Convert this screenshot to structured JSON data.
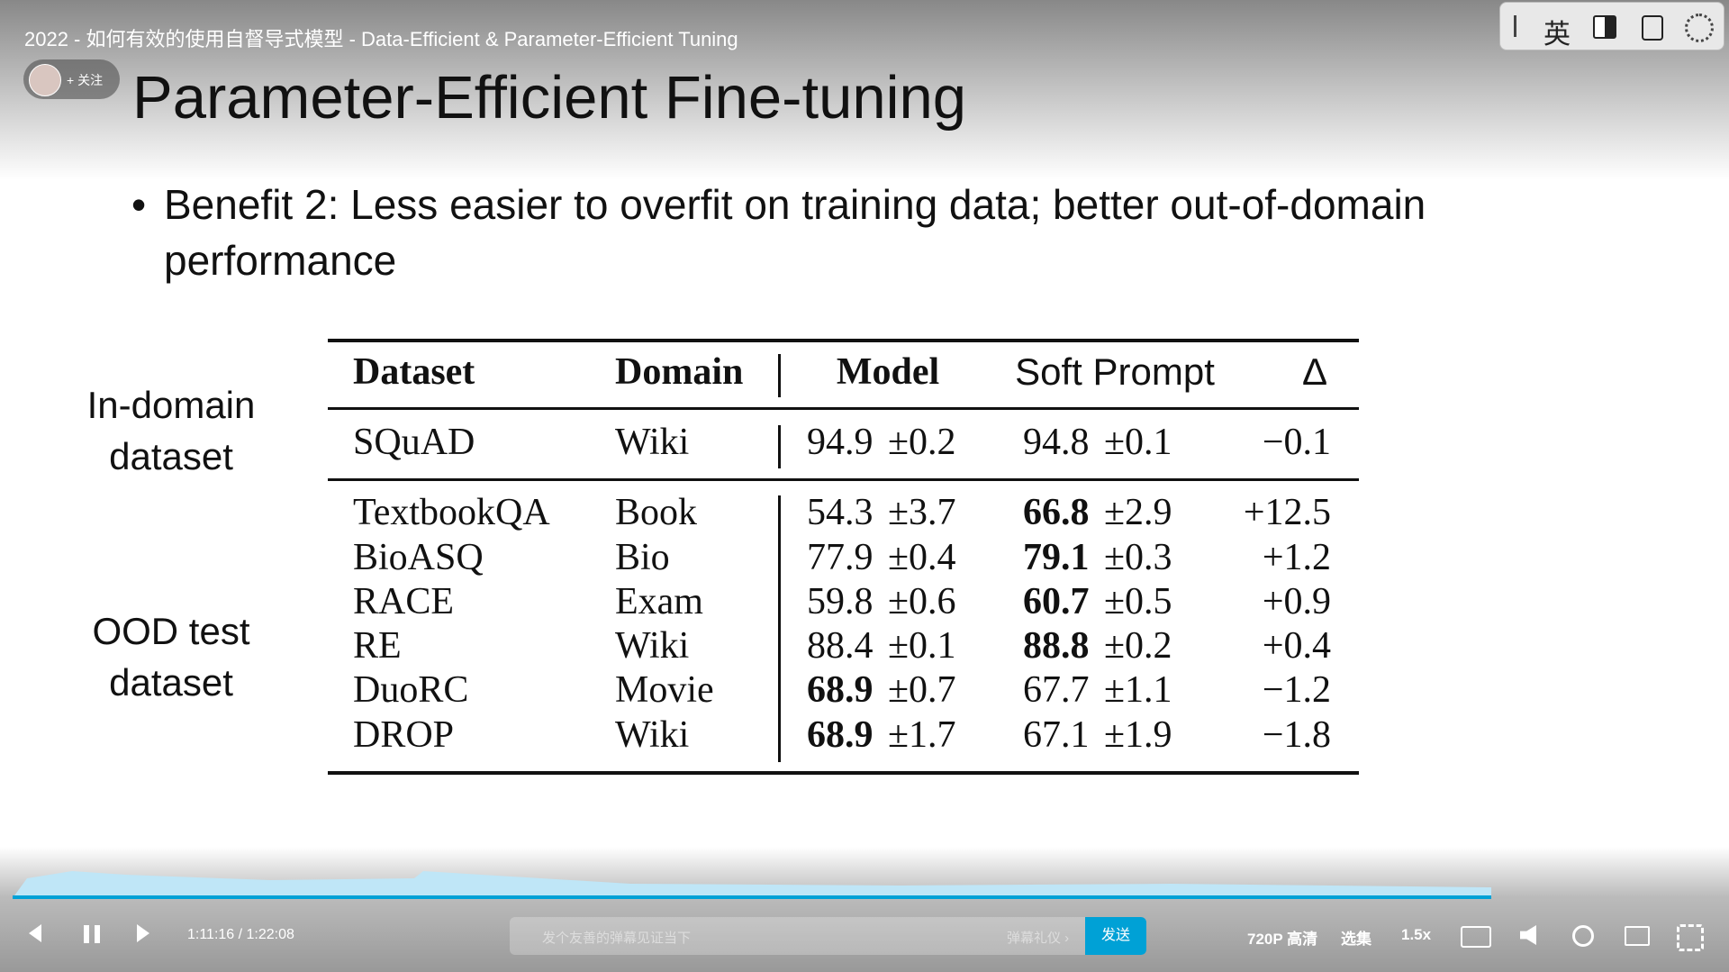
{
  "video_title": "2022 - 如何有效的使用自督导式模型 - Data-Efficient & Parameter-Efficient Tuning",
  "follow": "+ 关注",
  "ime": "英",
  "slide": {
    "title": "Parameter-Efficient Fine-tuning",
    "bullet": [
      "Benefit 2: Less easier to overfit on training data; better out-of-domain",
      "performance"
    ],
    "side_labels": [
      [
        "In-domain",
        "dataset"
      ],
      [
        "OOD test",
        "dataset"
      ]
    ],
    "table": {
      "header": [
        "Dataset",
        "Domain",
        "Model",
        "Soft Prompt",
        "Δ"
      ],
      "rows": [
        [
          "SQuAD",
          "Wiki",
          {
            "mean": "94.9",
            "sd": "±0.2"
          },
          {
            "mean": "94.8",
            "sd": "±0.1"
          },
          "−0.1"
        ],
        [
          "TextbookQA",
          "Book",
          {
            "mean": "54.3",
            "sd": "±3.7"
          },
          {
            "mean": "66.8",
            "sd": "±2.9",
            "bold": true
          },
          "+12.5"
        ],
        [
          "BioASQ",
          "Bio",
          {
            "mean": "77.9",
            "sd": "±0.4"
          },
          {
            "mean": "79.1",
            "sd": "±0.3",
            "bold": true
          },
          "+1.2"
        ],
        [
          "RACE",
          "Exam",
          {
            "mean": "59.8",
            "sd": "±0.6"
          },
          {
            "mean": "60.7",
            "sd": "±0.5",
            "bold": true
          },
          "+0.9"
        ],
        [
          "RE",
          "Wiki",
          {
            "mean": "88.4",
            "sd": "±0.1"
          },
          {
            "mean": "88.8",
            "sd": "±0.2",
            "bold": true
          },
          "+0.4"
        ],
        [
          "DuoRC",
          "Movie",
          {
            "mean": "68.9",
            "sd": "±0.7",
            "bold": true
          },
          {
            "mean": "67.7",
            "sd": "±1.1"
          },
          "−1.2"
        ],
        [
          "DROP",
          "Wiki",
          {
            "mean": "68.9",
            "sd": "±1.7",
            "bold": true
          },
          {
            "mean": "67.1",
            "sd": "±1.9"
          },
          "−1.8"
        ]
      ]
    }
  },
  "player": {
    "time": "1:11:16  /  1:22:08",
    "danmaku_placeholder": "发个友善的弹幕见证当下",
    "danmaku_etiquette": "弹幕礼仪 ›",
    "send": "发送",
    "quality": "720P 高清",
    "episodes": "选集",
    "speed": "1.5x"
  }
}
